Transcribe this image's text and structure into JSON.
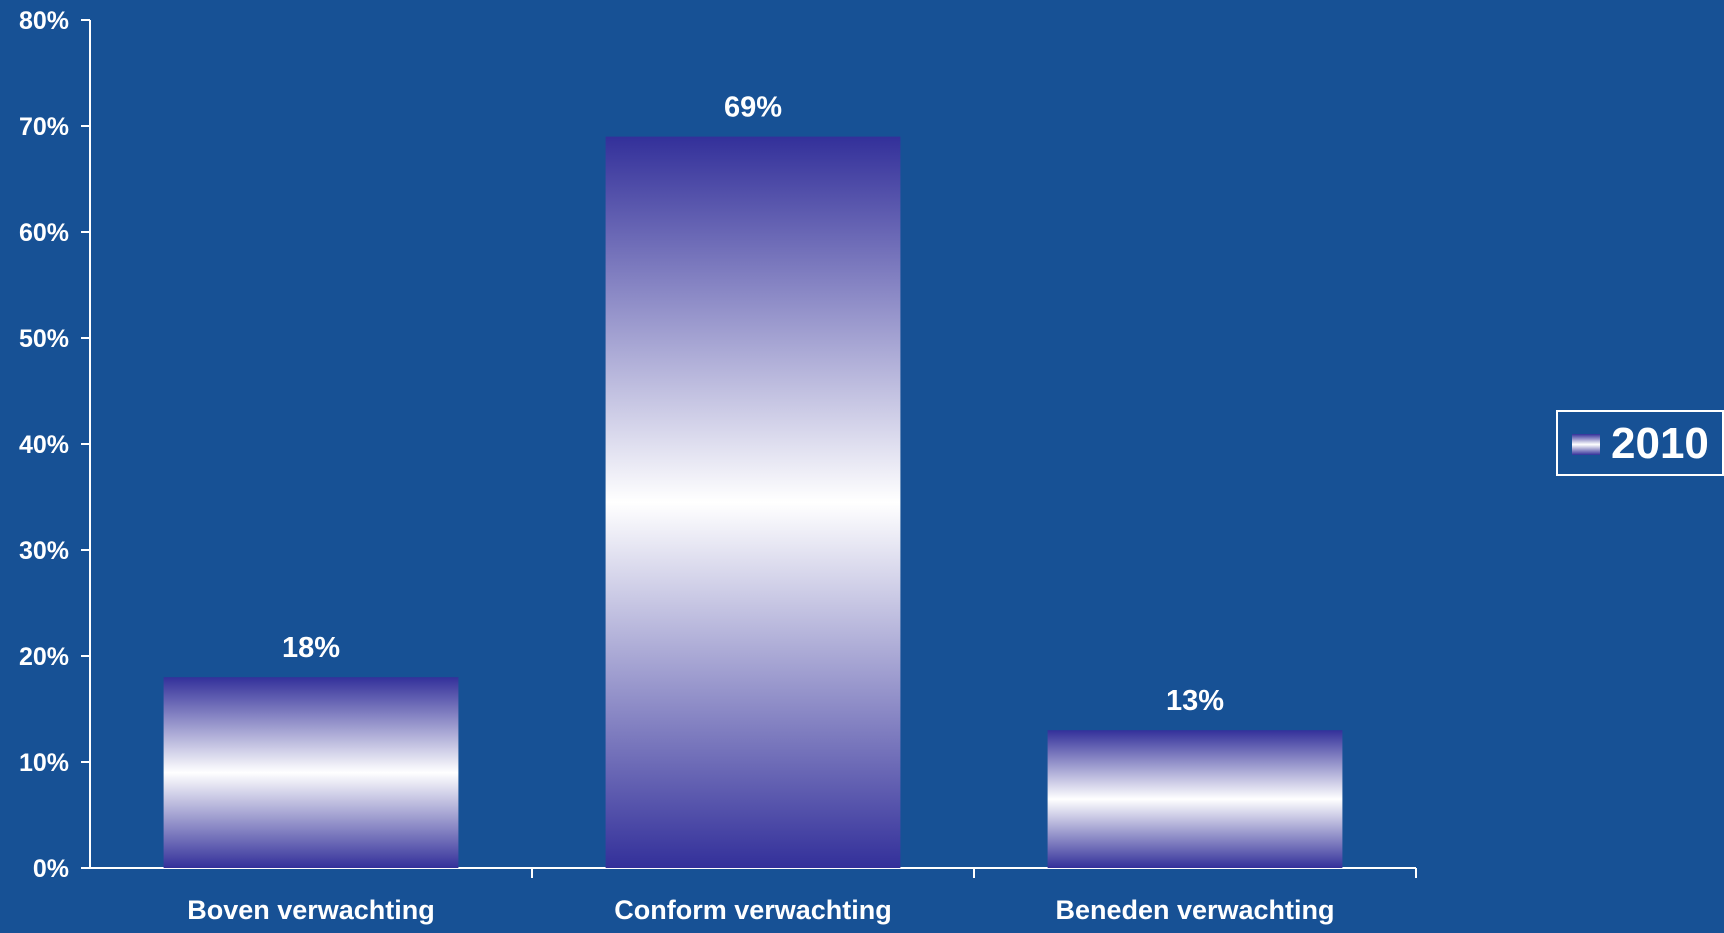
{
  "chart_data": {
    "type": "bar",
    "categories": [
      "Boven verwachting",
      "Conform verwachting",
      "Beneden verwachting"
    ],
    "series": [
      {
        "name": "2010",
        "values": [
          18,
          69,
          13
        ]
      }
    ],
    "data_labels": [
      "18%",
      "69%",
      "13%"
    ],
    "y_ticks": [
      "0%",
      "10%",
      "20%",
      "30%",
      "40%",
      "50%",
      "60%",
      "70%",
      "80%"
    ],
    "ylim": [
      0,
      80
    ],
    "title": "",
    "xlabel": "",
    "ylabel": "",
    "grid": false,
    "legend_position": "right",
    "colors": {
      "background": "#175195",
      "bar_edge": "#33309A",
      "bar_center": "#FFFFFF",
      "axis": "#FFFFFF",
      "text": "#FFFFFF"
    }
  }
}
